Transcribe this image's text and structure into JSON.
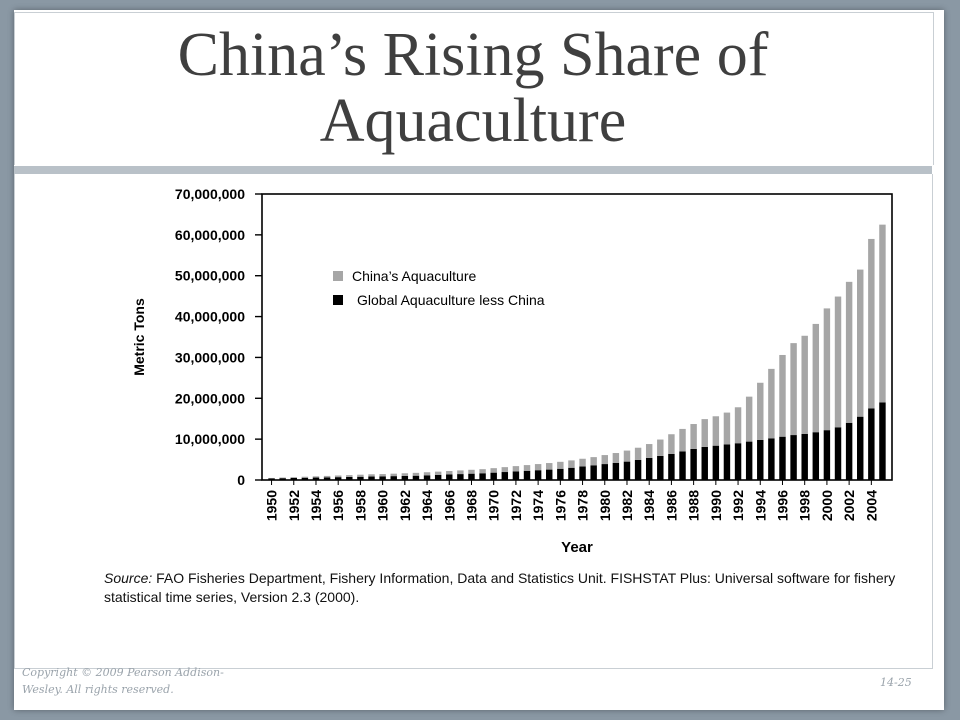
{
  "slide": {
    "title_line1": "China’s Rising Share of",
    "title_line2": "Aquaculture",
    "copyright": "Copyright © 2009 Pearson Addison-Wesley. All rights reserved.",
    "page_number": "14-25"
  },
  "source_note": {
    "label": "Source:",
    "text": " FAO Fisheries Department, Fishery Information, Data and Statistics Unit. FISHSTAT Plus: Universal software for fishery statistical time series, Version 2.3 (2000)."
  },
  "colors": {
    "china": "#a6a6a6",
    "global_less_china": "#000000",
    "title": "#3f3f3f",
    "background": "#8a98a4"
  },
  "chart_data": {
    "type": "bar",
    "stacked": true,
    "title": "",
    "xlabel": "Year",
    "ylabel": "Metric Tons",
    "ylim": [
      0,
      70000000
    ],
    "yticks": [
      0,
      10000000,
      20000000,
      30000000,
      40000000,
      50000000,
      60000000,
      70000000
    ],
    "ytick_labels": [
      "0",
      "10,000,000",
      "20,000,000",
      "30,000,000",
      "40,000,000",
      "50,000,000",
      "60,000,000",
      "70,000,000"
    ],
    "xtick_labels": [
      "1950",
      "1952",
      "1954",
      "1956",
      "1958",
      "1960",
      "1962",
      "1964",
      "1966",
      "1968",
      "1970",
      "1972",
      "1974",
      "1976",
      "1978",
      "1980",
      "1982",
      "1984",
      "1986",
      "1988",
      "1990",
      "1992",
      "1994",
      "1996",
      "1998",
      "2000",
      "2002",
      "2004"
    ],
    "legend_position": "upper-left",
    "categories": [
      1950,
      1951,
      1952,
      1953,
      1954,
      1955,
      1956,
      1957,
      1958,
      1959,
      1960,
      1961,
      1962,
      1963,
      1964,
      1965,
      1966,
      1967,
      1968,
      1969,
      1970,
      1971,
      1972,
      1973,
      1974,
      1975,
      1976,
      1977,
      1978,
      1979,
      1980,
      1981,
      1982,
      1983,
      1984,
      1985,
      1986,
      1987,
      1988,
      1989,
      1990,
      1991,
      1992,
      1993,
      1994,
      1995,
      1996,
      1997,
      1998,
      1999,
      2000,
      2001,
      2002,
      2003,
      2004,
      2005
    ],
    "series": [
      {
        "name": "Global Aquaculture less China",
        "values": [
          400000,
          450000,
          500000,
          550000,
          600000,
          650000,
          700000,
          750000,
          800000,
          850000,
          900000,
          950000,
          1000000,
          1050000,
          1150000,
          1250000,
          1350000,
          1450000,
          1550000,
          1650000,
          1800000,
          1950000,
          2100000,
          2250000,
          2400000,
          2550000,
          2750000,
          3000000,
          3300000,
          3600000,
          3900000,
          4200000,
          4500000,
          4900000,
          5400000,
          5900000,
          6400000,
          7000000,
          7600000,
          8100000,
          8400000,
          8700000,
          9000000,
          9400000,
          9800000,
          10200000,
          10600000,
          11000000,
          11300000,
          11700000,
          12200000,
          12900000,
          14000000,
          15500000,
          17500000,
          19000000
        ]
      },
      {
        "name": "China’s Aquaculture",
        "values": [
          100000,
          150000,
          200000,
          250000,
          300000,
          350000,
          400000,
          450000,
          500000,
          550000,
          550000,
          600000,
          650000,
          700000,
          750000,
          800000,
          850000,
          900000,
          950000,
          1000000,
          1100000,
          1200000,
          1300000,
          1400000,
          1500000,
          1600000,
          1700000,
          1800000,
          1900000,
          2000000,
          2200000,
          2400000,
          2700000,
          3000000,
          3400000,
          4000000,
          4800000,
          5500000,
          6100000,
          6800000,
          7200000,
          7800000,
          8800000,
          11000000,
          14000000,
          17000000,
          20000000,
          22500000,
          24000000,
          26500000,
          29800000,
          32000000,
          34500000,
          36000000,
          41500000,
          43500000
        ]
      }
    ]
  }
}
